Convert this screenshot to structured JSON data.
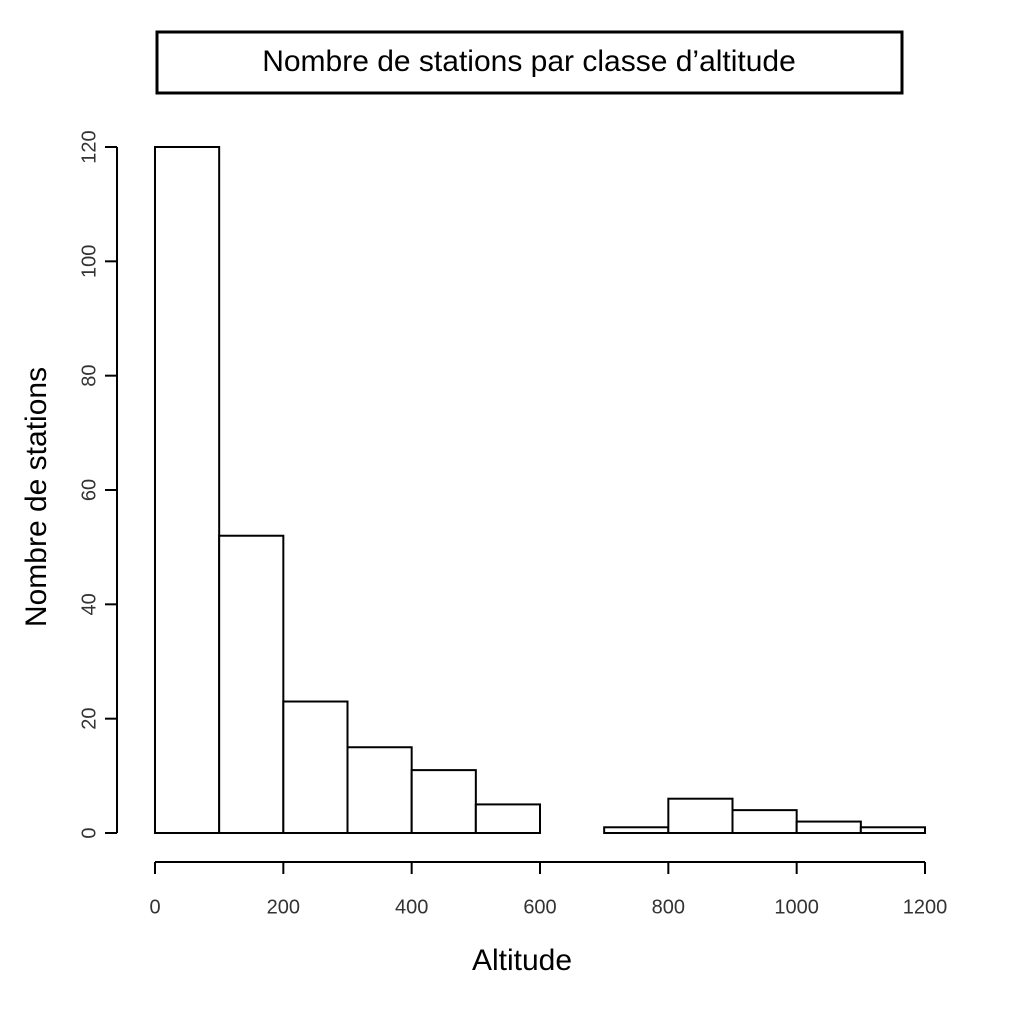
{
  "chart_data": {
    "type": "histogram",
    "title": "Nombre de stations par classe d’altitude",
    "x_label": "Altitude",
    "y_label": "Nombre de stations",
    "bins": [
      0,
      100,
      200,
      300,
      400,
      500,
      600,
      700,
      800,
      900,
      1000,
      1100,
      1200
    ],
    "counts": [
      120,
      52,
      23,
      15,
      11,
      5,
      0,
      1,
      6,
      4,
      2,
      1
    ],
    "color": "#ffffff",
    "xlim": [
      0,
      1200
    ],
    "xticks": [
      0,
      200,
      400,
      600,
      800,
      1000,
      1200
    ],
    "ylim": [
      0,
      120
    ],
    "yticks": [
      0,
      20,
      40,
      60,
      80,
      100,
      120
    ],
    "grid": false
  }
}
